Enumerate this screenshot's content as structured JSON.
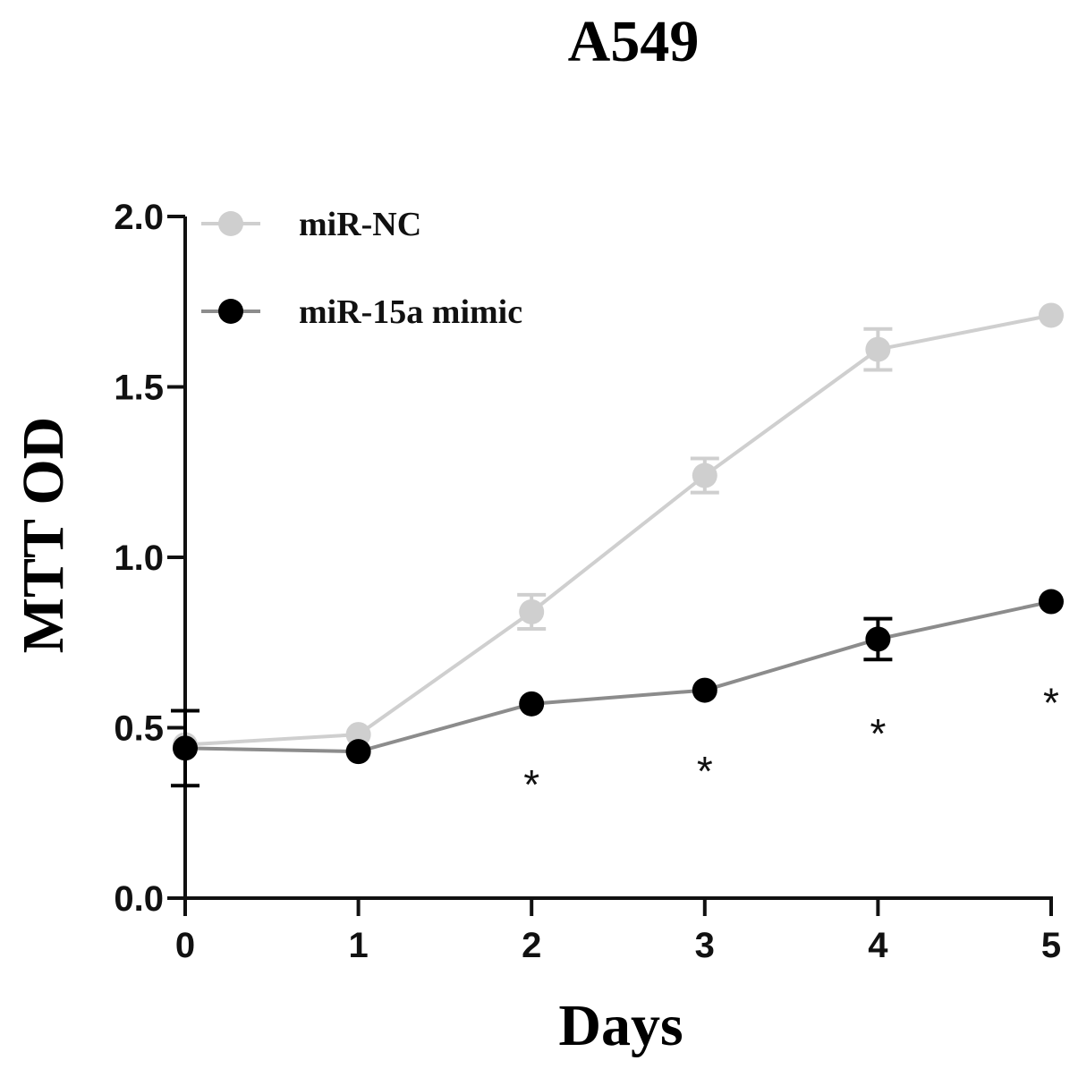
{
  "chart_data": {
    "type": "line",
    "title": "A549",
    "xlabel": "Days",
    "ylabel": "MTT OD",
    "x": [
      0,
      1,
      2,
      3,
      4,
      5
    ],
    "x_ticks": [
      "0",
      "1",
      "2",
      "3",
      "4",
      "5"
    ],
    "y_ticks": [
      "0.0",
      "0.5",
      "1.0",
      "1.5",
      "2.0"
    ],
    "y_tick_values": [
      0,
      0.5,
      1.0,
      1.5,
      2.0
    ],
    "xlim": [
      0,
      5
    ],
    "ylim": [
      0,
      2.0
    ],
    "grid": false,
    "legend_position": "top-left",
    "series": [
      {
        "name": "miR-NC",
        "color": "#cfcfcf",
        "values": [
          0.45,
          0.48,
          0.84,
          1.24,
          1.61,
          1.71
        ],
        "errors": [
          0.0,
          0.0,
          0.05,
          0.05,
          0.06,
          0.0
        ]
      },
      {
        "name": "miR-15a mimic",
        "color": "#000000",
        "line_color": "#8c8c8c",
        "values": [
          0.44,
          0.43,
          0.57,
          0.61,
          0.76,
          0.87
        ],
        "errors": [
          0.11,
          0.0,
          0.0,
          0.0,
          0.06,
          0.0
        ]
      }
    ],
    "annotations": [
      {
        "x": 2,
        "y": 0.37,
        "text": "*"
      },
      {
        "x": 3,
        "y": 0.41,
        "text": "*"
      },
      {
        "x": 4,
        "y": 0.52,
        "text": "*"
      },
      {
        "x": 5,
        "y": 0.61,
        "text": "*"
      }
    ]
  }
}
